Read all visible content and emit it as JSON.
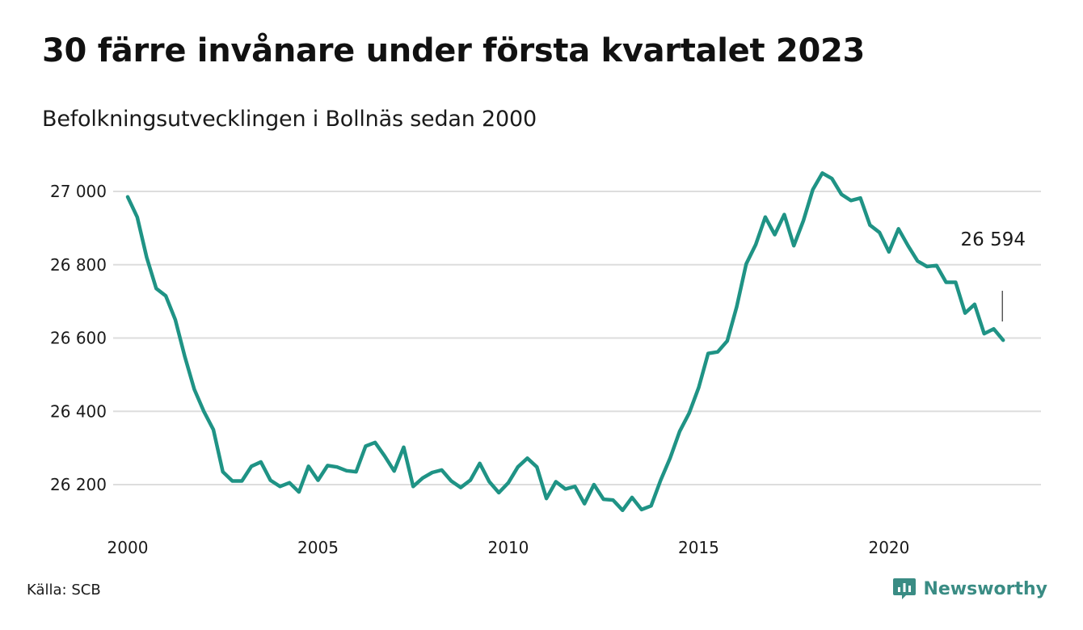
{
  "title": "30 färre invånare under första kvartalet 2023",
  "subtitle": "Befolkningsutvecklingen i Bollnäs sedan 2000",
  "source": "Källa: SCB",
  "brand": {
    "name": "Newsworthy",
    "icon": "newsworthy-logo-icon",
    "color": "#3a8c84"
  },
  "colors": {
    "line": "#1f9385",
    "grid": "#dddddd"
  },
  "chart_data": {
    "type": "line",
    "title": "30 färre invånare under första kvartalet 2023",
    "subtitle": "Befolkningsutvecklingen i Bollnäs sedan 2000",
    "x_ticks": [
      2000,
      2005,
      2010,
      2015,
      2020
    ],
    "y_ticks": [
      26200,
      26400,
      26600,
      26800,
      27000
    ],
    "y_tick_labels": [
      "26 200",
      "26 400",
      "26 600",
      "26 800",
      "27 000"
    ],
    "ylim": [
      26100,
      27050
    ],
    "xlim": [
      2000,
      2023.25
    ],
    "grid": true,
    "end_label": "26 594",
    "series": [
      {
        "x": [
          2000.0,
          2000.25,
          2000.5,
          2000.75,
          2001.0,
          2001.25,
          2001.5,
          2001.75,
          2002.0,
          2002.25,
          2002.5,
          2002.75,
          2003.0,
          2003.25,
          2003.5,
          2003.75,
          2004.0,
          2004.25,
          2004.5,
          2004.75,
          2005.0,
          2005.25,
          2005.5,
          2005.75,
          2006.0,
          2006.25,
          2006.5,
          2006.75,
          2007.0,
          2007.25,
          2007.5,
          2007.75,
          2008.0,
          2008.25,
          2008.5,
          2008.75,
          2009.0,
          2009.25,
          2009.5,
          2009.75,
          2010.0,
          2010.25,
          2010.5,
          2010.75,
          2011.0,
          2011.25,
          2011.5,
          2011.75,
          2012.0,
          2012.25,
          2012.5,
          2012.75,
          2013.0,
          2013.25,
          2013.5,
          2013.75,
          2014.0,
          2014.25,
          2014.5,
          2014.75,
          2015.0,
          2015.25,
          2015.5,
          2015.75,
          2016.0,
          2016.25,
          2016.5,
          2016.75,
          2017.0,
          2017.25,
          2017.5,
          2017.75,
          2018.0,
          2018.25,
          2018.5,
          2018.75,
          2019.0,
          2019.25,
          2019.5,
          2019.75,
          2020.0,
          2020.25,
          2020.5,
          2020.75,
          2021.0,
          2021.25,
          2021.5,
          2021.75,
          2022.0,
          2022.25,
          2022.5,
          2022.75,
          2023.0
        ],
        "values": [
          26985,
          26930,
          26820,
          26735,
          26715,
          26650,
          26550,
          26460,
          26400,
          26350,
          26235,
          26210,
          26210,
          26250,
          26262,
          26212,
          26195,
          26205,
          26180,
          26250,
          26212,
          26252,
          26248,
          26238,
          26235,
          26305,
          26315,
          26278,
          26237,
          26302,
          26195,
          26218,
          26233,
          26240,
          26210,
          26192,
          26212,
          26258,
          26208,
          26178,
          26205,
          26248,
          26272,
          26248,
          26162,
          26208,
          26188,
          26195,
          26148,
          26200,
          26160,
          26158,
          26130,
          26165,
          26132,
          26142,
          26212,
          26272,
          26345,
          26395,
          26465,
          26558,
          26562,
          26592,
          26685,
          26802,
          26855,
          26930,
          26882,
          26937,
          26852,
          26920,
          27005,
          27050,
          27035,
          26992,
          26975,
          26982,
          26908,
          26888,
          26835,
          26898,
          26852,
          26810,
          26795,
          26798,
          26752,
          26752,
          26668,
          26692,
          26612,
          26625,
          26594
        ]
      }
    ]
  }
}
